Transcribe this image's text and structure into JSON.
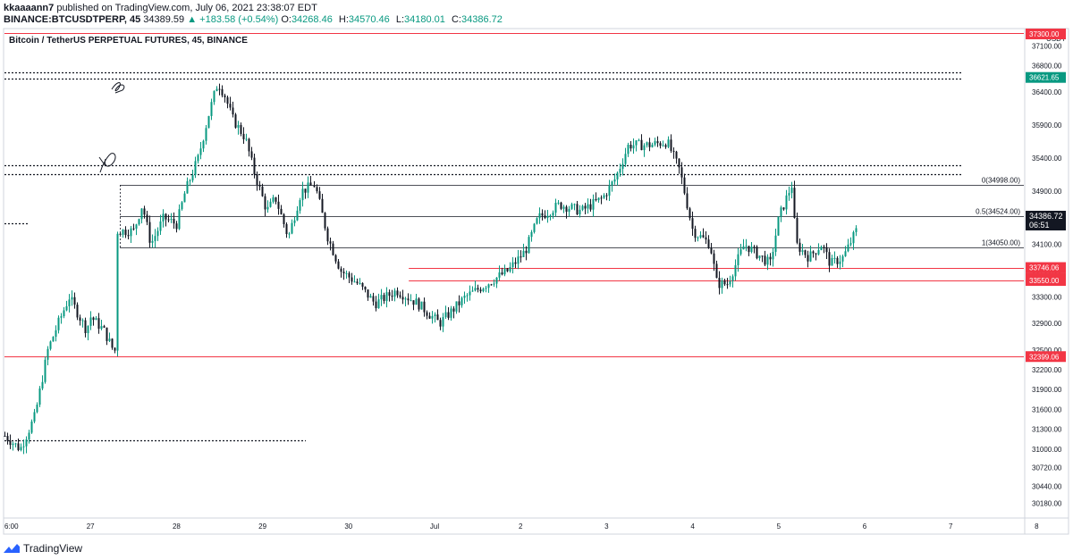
{
  "header": {
    "author": "kkaaaann7",
    "published_text": " published on TradingView.com, July 06, 2021 23:38:07 EDT",
    "symbol": "BINANCE:BTCUSDTPERP, 45",
    "last": "34389.59",
    "change": "▲ +183.58 (+0.54%)",
    "ohlc": [
      {
        "label": "O:",
        "value": "34268.46"
      },
      {
        "label": "H:",
        "value": "34570.46"
      },
      {
        "label": "L:",
        "value": "34180.01"
      },
      {
        "label": "C:",
        "value": "34386.72"
      }
    ]
  },
  "chart_title": "Bitcoin / TetherUS PERPETUAL FUTURES, 45, BINANCE",
  "footer": {
    "brand": "TradingView"
  },
  "colors": {
    "up": "#089981",
    "down": "#131722",
    "red_line": "#f23645",
    "grid": "#e0e3eb",
    "price_tag": "#131722"
  },
  "chart_data": {
    "type": "candlestick",
    "currency": "USDT",
    "x_ticks": [
      "6:00",
      "27",
      "28",
      "29",
      "30",
      "Jul",
      "2",
      "3",
      "4",
      "5",
      "6",
      "7",
      "8"
    ],
    "y_ticks": [
      "37100.00",
      "36800.00",
      "36400.00",
      "35900.00",
      "35400.00",
      "34900.00",
      "34500.00",
      "34100.00",
      "33700.00",
      "33300.00",
      "32900.00",
      "32500.00",
      "32200.00",
      "31900.00",
      "31600.00",
      "31300.00",
      "31000.00",
      "30720.00",
      "30440.00",
      "30180.00"
    ],
    "ylim": [
      29960,
      37330
    ],
    "current_price": {
      "value": "34386.72",
      "countdown": "06:51"
    },
    "price_labels": [
      {
        "value": 37300.0,
        "text": "37300.00",
        "color": "#f23645"
      },
      {
        "value": 36621.65,
        "text": "36621.65",
        "color": "#089981"
      },
      {
        "value": 33746.06,
        "text": "33746.06",
        "color": "#f23645"
      },
      {
        "value": 33746.06,
        "text": "33746.06",
        "color": "#f23645",
        "stack": 1
      },
      {
        "value": 33550.0,
        "text": "33550.00",
        "color": "#f23645"
      },
      {
        "value": 32399.06,
        "text": "32399.06",
        "color": "#f23645"
      }
    ],
    "fibonacci": [
      {
        "level": "0",
        "price": 34998.0,
        "text": "0(34998.00)"
      },
      {
        "level": "0.5",
        "price": 34524.0,
        "text": "0.5(34524.00)"
      },
      {
        "level": "1",
        "price": 34050.0,
        "text": "1(34050.00)"
      }
    ],
    "horizontal_lines": [
      {
        "price": 37300.0,
        "style": "solid",
        "color": "#f23645"
      },
      {
        "price": 36700.0,
        "style": "dotted"
      },
      {
        "price": 36600.0,
        "style": "dotted"
      },
      {
        "price": 35290.0,
        "style": "dotted"
      },
      {
        "price": 35160.0,
        "style": "dotted"
      },
      {
        "price": 34420.0,
        "style": "dotted-short"
      },
      {
        "price": 31130.0,
        "style": "dotted-partial"
      },
      {
        "price": 33746.06,
        "style": "solid",
        "color": "#f23645"
      },
      {
        "price": 33550.0,
        "style": "solid",
        "color": "#f23645"
      },
      {
        "price": 32399.06,
        "style": "solid",
        "color": "#f23645"
      }
    ],
    "trend": [
      {
        "t": 0.0,
        "p": 31200
      },
      {
        "t": 0.18,
        "p": 31000
      },
      {
        "t": 0.35,
        "p": 31500
      },
      {
        "t": 0.5,
        "p": 32500
      },
      {
        "t": 0.62,
        "p": 32900
      },
      {
        "t": 0.75,
        "p": 33300
      },
      {
        "t": 0.95,
        "p": 32800
      },
      {
        "t": 1.0,
        "p": 33000
      },
      {
        "t": 1.15,
        "p": 32800
      },
      {
        "t": 1.28,
        "p": 32450
      },
      {
        "t": 1.3,
        "p": 34300
      },
      {
        "t": 1.5,
        "p": 34300
      },
      {
        "t": 1.6,
        "p": 34700
      },
      {
        "t": 1.7,
        "p": 34100
      },
      {
        "t": 1.85,
        "p": 34500
      },
      {
        "t": 2.0,
        "p": 34400
      },
      {
        "t": 2.1,
        "p": 34900
      },
      {
        "t": 2.25,
        "p": 35400
      },
      {
        "t": 2.38,
        "p": 36100
      },
      {
        "t": 2.48,
        "p": 36550
      },
      {
        "t": 2.56,
        "p": 36350
      },
      {
        "t": 2.65,
        "p": 36000
      },
      {
        "t": 2.8,
        "p": 35700
      },
      {
        "t": 2.9,
        "p": 35200
      },
      {
        "t": 3.05,
        "p": 34600
      },
      {
        "t": 3.15,
        "p": 34800
      },
      {
        "t": 3.3,
        "p": 34200
      },
      {
        "t": 3.45,
        "p": 34900
      },
      {
        "t": 3.6,
        "p": 35000
      },
      {
        "t": 3.75,
        "p": 34200
      },
      {
        "t": 3.9,
        "p": 33700
      },
      {
        "t": 4.1,
        "p": 33500
      },
      {
        "t": 4.3,
        "p": 33200
      },
      {
        "t": 4.55,
        "p": 33400
      },
      {
        "t": 4.8,
        "p": 33200
      },
      {
        "t": 5.05,
        "p": 32900
      },
      {
        "t": 5.35,
        "p": 33300
      },
      {
        "t": 5.6,
        "p": 33500
      },
      {
        "t": 5.85,
        "p": 33700
      },
      {
        "t": 6.05,
        "p": 34000
      },
      {
        "t": 6.2,
        "p": 34500
      },
      {
        "t": 6.45,
        "p": 34700
      },
      {
        "t": 6.7,
        "p": 34600
      },
      {
        "t": 6.95,
        "p": 34800
      },
      {
        "t": 7.1,
        "p": 35100
      },
      {
        "t": 7.25,
        "p": 35600
      },
      {
        "t": 7.5,
        "p": 35600
      },
      {
        "t": 7.7,
        "p": 35650
      },
      {
        "t": 7.85,
        "p": 35200
      },
      {
        "t": 8.0,
        "p": 34300
      },
      {
        "t": 8.2,
        "p": 34100
      },
      {
        "t": 8.28,
        "p": 33500
      },
      {
        "t": 8.4,
        "p": 33500
      },
      {
        "t": 8.6,
        "p": 34100
      },
      {
        "t": 8.9,
        "p": 33800
      },
      {
        "t": 9.0,
        "p": 34500
      },
      {
        "t": 9.15,
        "p": 35000
      },
      {
        "t": 9.2,
        "p": 34100
      },
      {
        "t": 9.35,
        "p": 33900
      },
      {
        "t": 9.5,
        "p": 34100
      },
      {
        "t": 9.6,
        "p": 33800
      },
      {
        "t": 9.75,
        "p": 33900
      },
      {
        "t": 9.9,
        "p": 34300
      }
    ]
  }
}
